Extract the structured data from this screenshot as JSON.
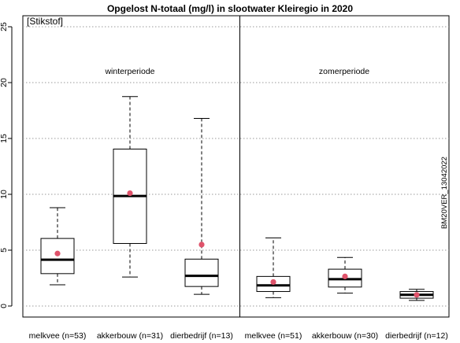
{
  "chart_data": {
    "type": "boxplot",
    "title": "Opgelost N-totaal (mg/l) in slootwater Kleiregio in 2020",
    "corner_label": "[Stikstof]",
    "watermark": "BM20VER_13042022",
    "ylim": [
      0,
      25
    ],
    "yticks": [
      0,
      5,
      10,
      15,
      20,
      25
    ],
    "grid": "horizontal dotted",
    "panels": [
      {
        "label": "winterperiode",
        "groups": [
          0,
          1,
          2
        ]
      },
      {
        "label": "zomerperiode",
        "groups": [
          3,
          4,
          5
        ]
      }
    ],
    "groups": [
      {
        "label": "melkvee (n=53)",
        "whisker_low": 1.9,
        "q1": 2.9,
        "median": 4.15,
        "q3": 6.05,
        "whisker_high": 8.8,
        "mean": 4.7
      },
      {
        "label": "akkerbouw (n=31)",
        "whisker_low": 2.6,
        "q1": 5.6,
        "median": 9.85,
        "q3": 14.05,
        "whisker_high": 18.75,
        "mean": 10.1
      },
      {
        "label": "dierbedrijf (n=13)",
        "whisker_low": 1.05,
        "q1": 1.75,
        "median": 2.7,
        "q3": 4.2,
        "whisker_high": 16.8,
        "mean": 5.5
      },
      {
        "label": "melkvee (n=51)",
        "whisker_low": 0.75,
        "q1": 1.3,
        "median": 1.85,
        "q3": 2.65,
        "whisker_high": 6.1,
        "mean": 2.15
      },
      {
        "label": "akkerbouw (n=30)",
        "whisker_low": 1.15,
        "q1": 1.7,
        "median": 2.4,
        "q3": 3.3,
        "whisker_high": 4.35,
        "mean": 2.65
      },
      {
        "label": "dierbedrijf (n=12)",
        "whisker_low": 0.5,
        "q1": 0.7,
        "median": 1.0,
        "q3": 1.3,
        "whisker_high": 1.5,
        "mean": 1.0
      }
    ],
    "colors": {
      "box": "#000000",
      "mean": "#df536b",
      "grid": "#9a9a9a"
    }
  }
}
